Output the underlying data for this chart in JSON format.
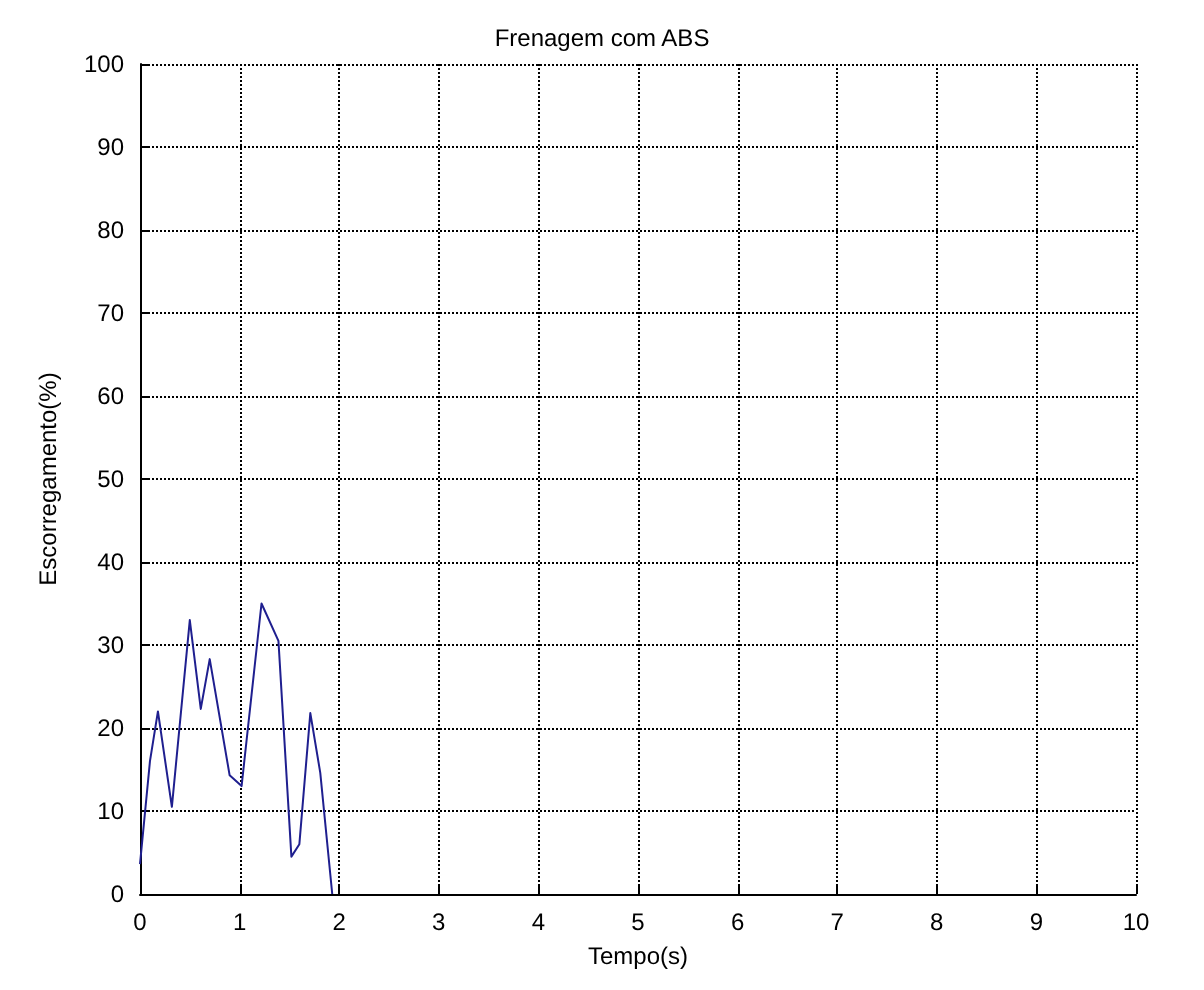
{
  "chart_data": {
    "type": "line",
    "title": "Frenagem com ABS",
    "xlabel": "Tempo(s)",
    "ylabel": "Escorregamento(%)",
    "series": [
      {
        "color": "#1f1f8f",
        "x": [
          0,
          0.1,
          0.18,
          0.32,
          0.5,
          0.61,
          0.7,
          0.9,
          1.02,
          1.22,
          1.39,
          1.52,
          1.6,
          1.71,
          1.81,
          1.93
        ],
        "values": [
          3.6,
          16,
          22,
          10.5,
          33,
          22.3,
          28.3,
          14.3,
          13,
          35,
          30.5,
          4.5,
          6,
          21.8,
          14.6,
          0
        ]
      }
    ],
    "xlim": [
      0,
      10
    ],
    "xticks": [
      0,
      1,
      2,
      3,
      4,
      5,
      6,
      7,
      8,
      9,
      10
    ],
    "ylim": [
      0,
      100
    ],
    "yticks": [
      0,
      10,
      20,
      30,
      40,
      50,
      60,
      70,
      80,
      90,
      100
    ],
    "grid": true,
    "marker": "none",
    "line_style": "solid"
  }
}
